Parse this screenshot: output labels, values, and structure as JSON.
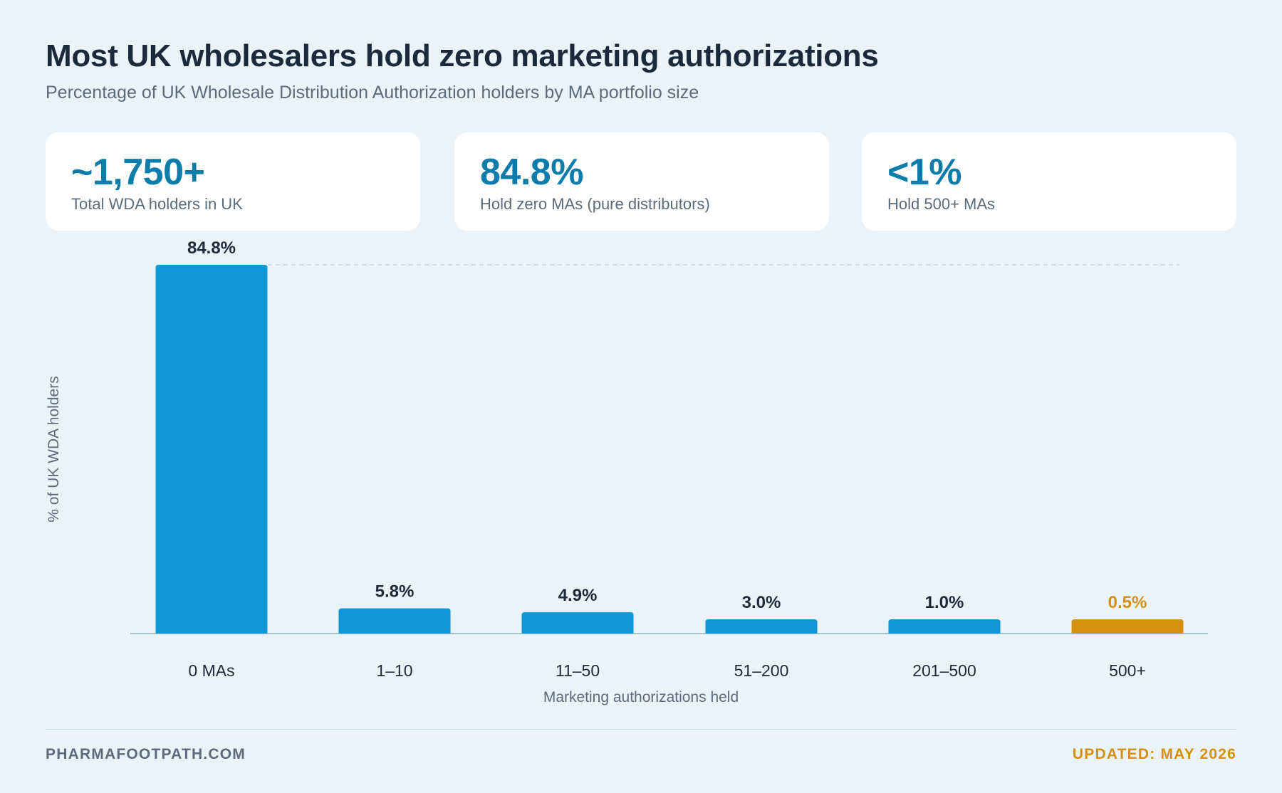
{
  "header": {
    "title": "Most UK wholesalers hold zero marketing authorizations",
    "subtitle": "Percentage of UK Wholesale Distribution Authorization holders by MA portfolio size"
  },
  "stats": [
    {
      "value": "~1,750+",
      "label": "Total WDA holders in UK"
    },
    {
      "value": "84.8%",
      "label": "Hold zero MAs (pure distributors)"
    },
    {
      "value": "<1%",
      "label": "Hold 500+ MAs"
    }
  ],
  "chart_data": {
    "type": "bar",
    "categories": [
      "0 MAs",
      "1–10",
      "11–50",
      "51–200",
      "201–500",
      "500+"
    ],
    "values": [
      84.8,
      5.8,
      4.9,
      3.0,
      1.0,
      0.5
    ],
    "value_labels": [
      "84.8%",
      "5.8%",
      "4.9%",
      "3.0%",
      "1.0%",
      "0.5%"
    ],
    "title": "",
    "xlabel": "Marketing authorizations held",
    "ylabel": "% of UK WDA holders",
    "ylim": [
      0,
      84.8
    ],
    "grid": false,
    "reference_line": 84.8,
    "colors": {
      "bar": "#0e97d4",
      "highlight": "#d4900e",
      "highlight_index": 5,
      "label": "#1c2a3a",
      "axis": "#a9c3d3"
    }
  },
  "footer": {
    "source": "PHARMAFOOTPATH.COM",
    "updated": "UPDATED: MAY 2026"
  }
}
